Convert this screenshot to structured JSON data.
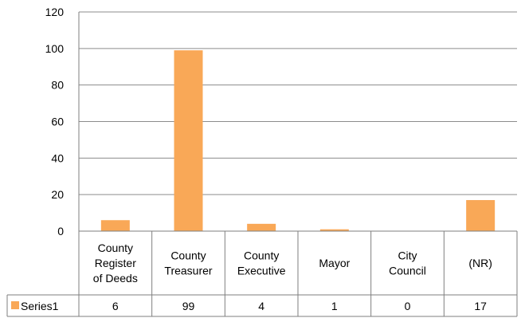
{
  "chart_data": {
    "type": "bar",
    "categories": [
      [
        "County",
        "Register",
        "of Deeds"
      ],
      [
        "County",
        "Treasurer"
      ],
      [
        "County",
        "Executive"
      ],
      [
        "Mayor"
      ],
      [
        "City",
        "Council"
      ],
      [
        "(NR)"
      ]
    ],
    "series": [
      {
        "name": "Series1",
        "values": [
          6,
          99,
          4,
          1,
          0,
          17
        ]
      }
    ],
    "value_labels": [
      "6",
      "99",
      "4",
      "1",
      "0",
      "17"
    ],
    "y_ticks": [
      "0",
      "20",
      "40",
      "60",
      "80",
      "100",
      "120"
    ],
    "ylim": [
      0,
      120
    ],
    "title": "",
    "xlabel": "",
    "ylabel": "",
    "grid": true,
    "legend_placement": "data-table",
    "colors": {
      "bar": "#F9A857",
      "grid": "#8C8C8C",
      "axis": "#7F7F7F"
    }
  }
}
